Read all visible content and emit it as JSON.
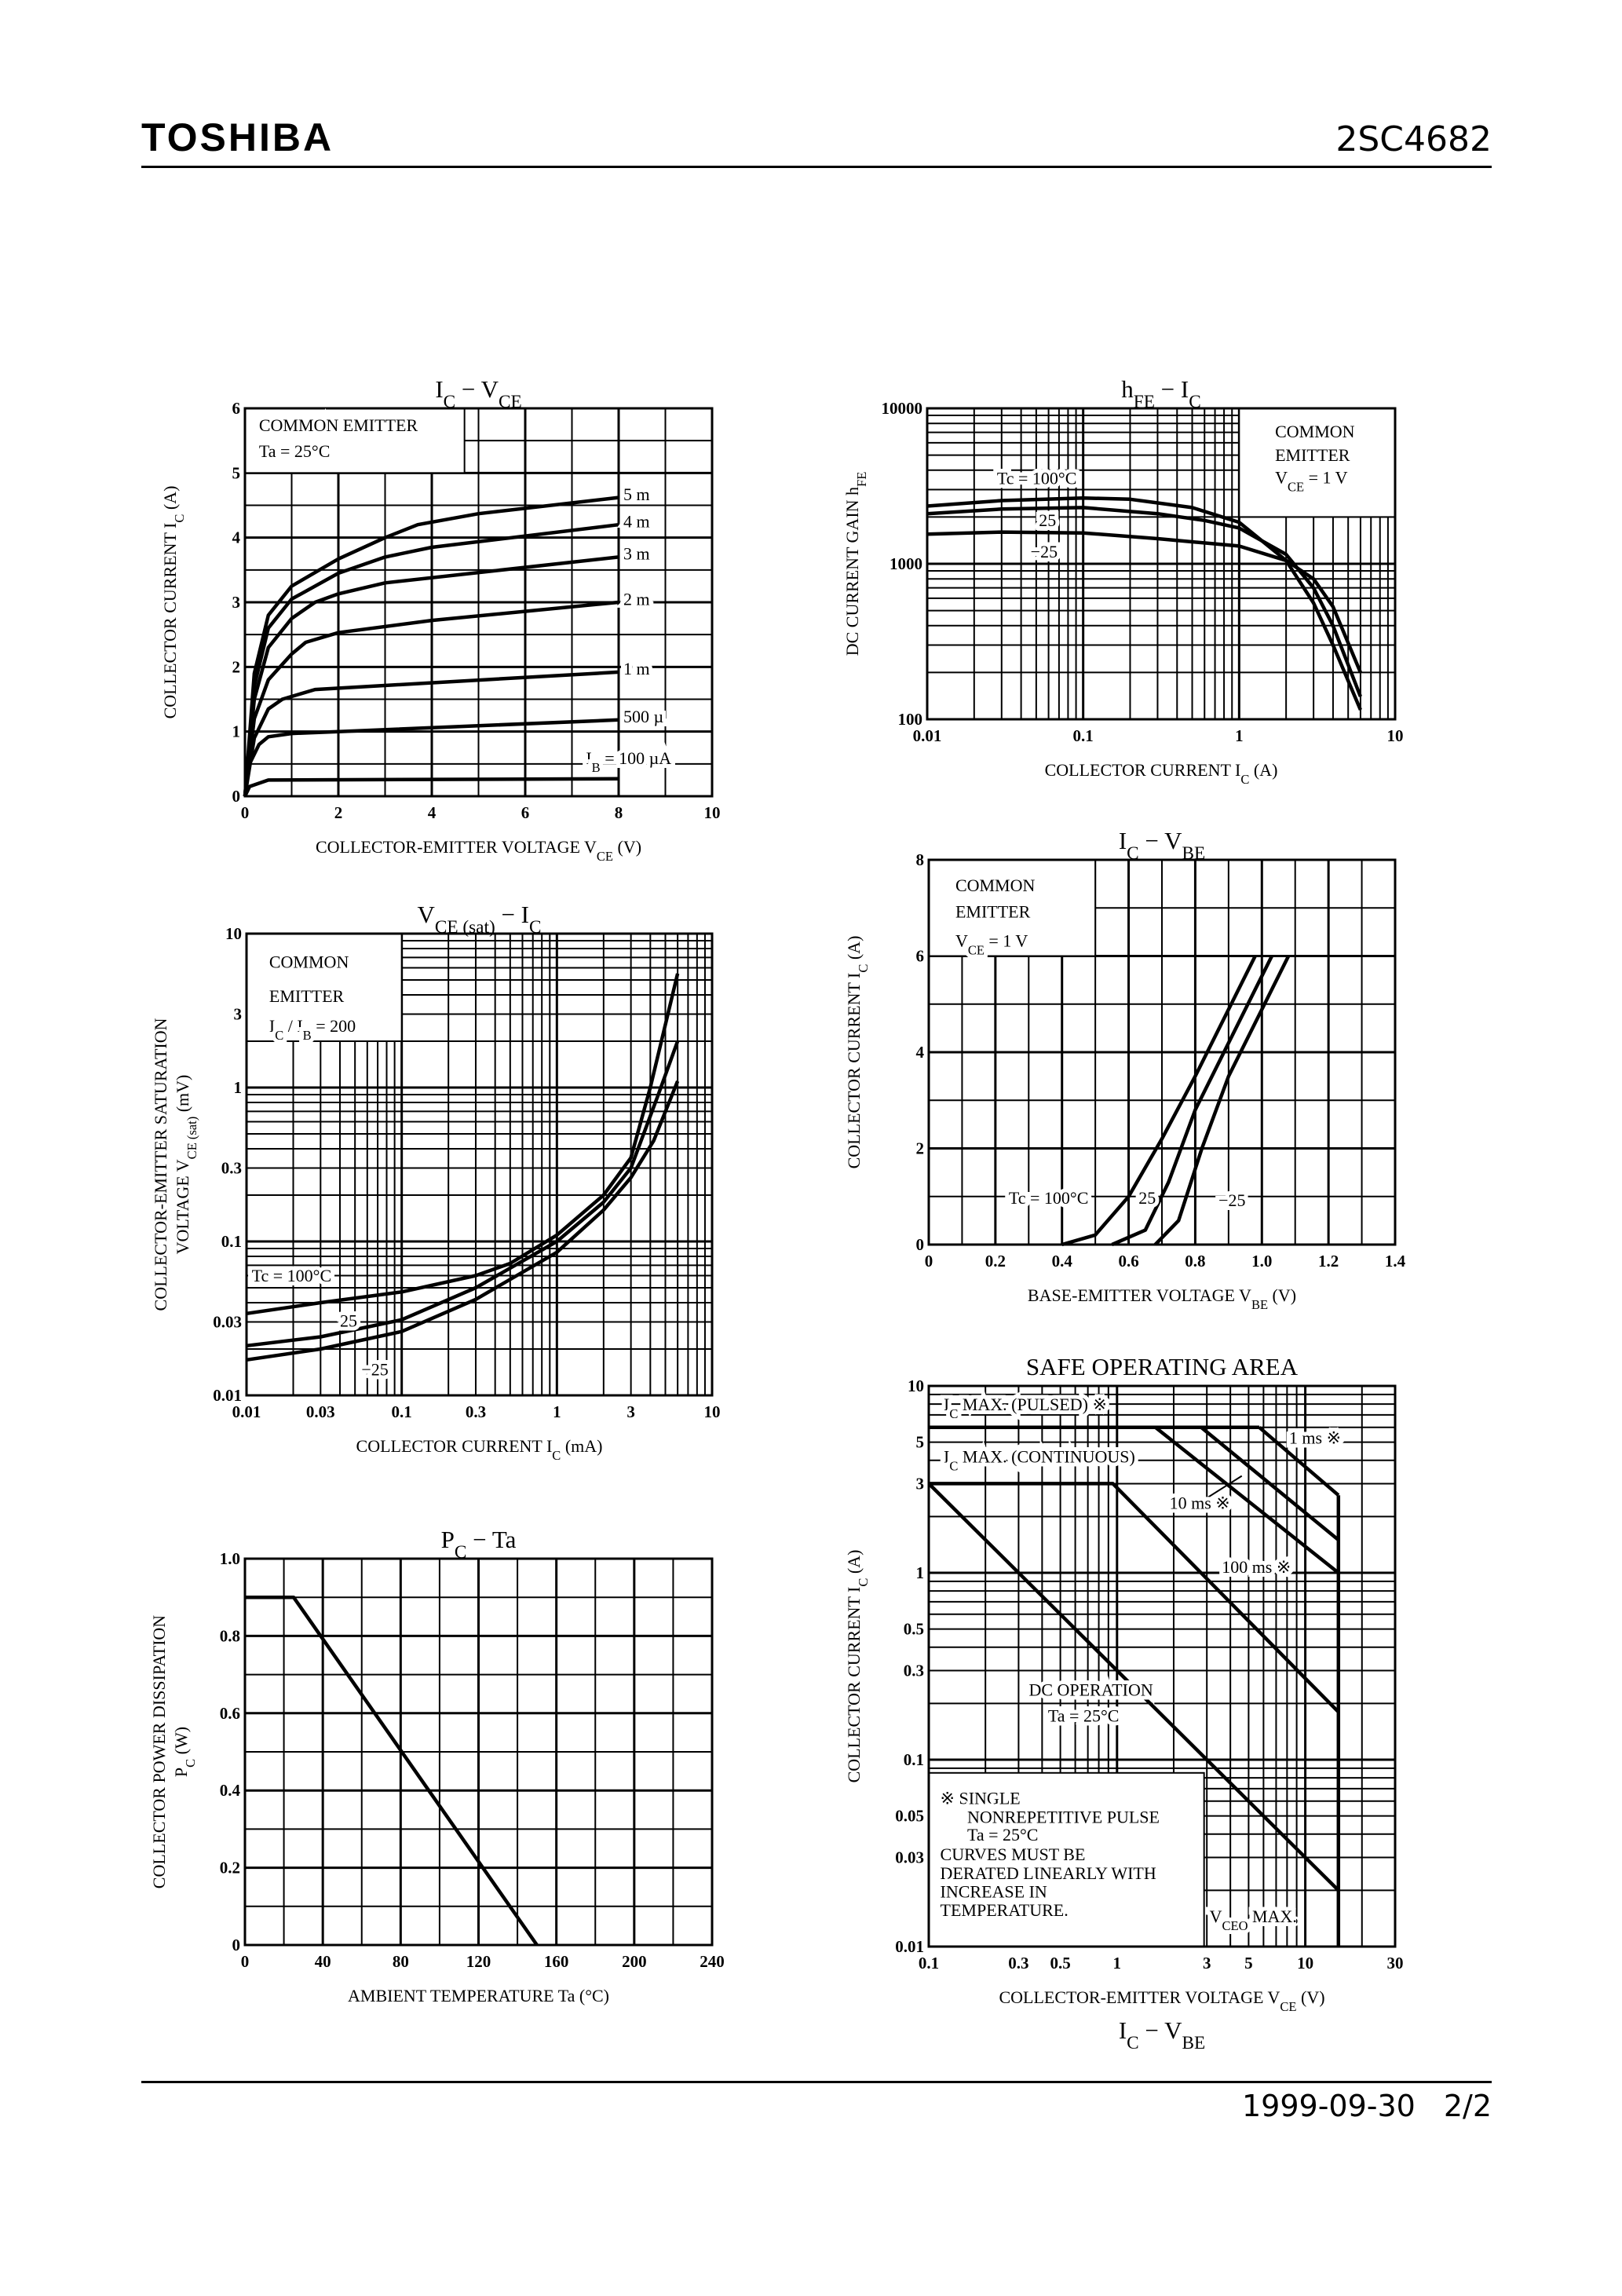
{
  "header": {
    "brand": "TOSHIBA",
    "part_number": "2SC4682"
  },
  "footer": {
    "date": "1999-09-30",
    "page": "2/2"
  },
  "extra_label": [
    "I",
    {
      "sub": "C"
    },
    " − V",
    {
      "sub": "BE"
    }
  ],
  "chart_data": [
    {
      "type": "line",
      "title": [
        "I",
        {
          "sub": "C"
        },
        " − V",
        {
          "sub": "CE"
        }
      ],
      "xlabel": [
        "COLLECTOR-EMITTER VOLTAGE   V",
        {
          "sub": "CE"
        },
        "   (V)"
      ],
      "ylabel": [
        [
          "COLLECTOR CURRENT   I",
          {
            "sub": "C"
          },
          "   (A)"
        ]
      ],
      "x": {
        "scale": "linear",
        "range": [
          0,
          10
        ],
        "ticks": [
          "0",
          "2",
          "4",
          "6",
          "8",
          "10"
        ]
      },
      "y": {
        "scale": "linear",
        "range": [
          0,
          6
        ],
        "ticks": [
          "0",
          "1",
          "2",
          "3",
          "4",
          "5",
          "6"
        ]
      },
      "grid": true,
      "series": [
        {
          "name": "IB = 100 µA",
          "points": [
            [
              0,
              0
            ],
            [
              0.1,
              0.15
            ],
            [
              0.5,
              0.25
            ],
            [
              8,
              0.27
            ]
          ]
        },
        {
          "name": "500 µ",
          "points": [
            [
              0,
              0
            ],
            [
              0.1,
              0.5
            ],
            [
              0.3,
              0.8
            ],
            [
              0.5,
              0.92
            ],
            [
              1,
              0.97
            ],
            [
              2,
              1.0
            ],
            [
              8,
              1.18
            ]
          ]
        },
        {
          "name": "1 m",
          "points": [
            [
              0,
              0
            ],
            [
              0.2,
              0.9
            ],
            [
              0.5,
              1.35
            ],
            [
              0.8,
              1.5
            ],
            [
              1.5,
              1.65
            ],
            [
              8,
              1.92
            ]
          ]
        },
        {
          "name": "2 m",
          "points": [
            [
              0,
              0
            ],
            [
              0.2,
              1.2
            ],
            [
              0.5,
              1.8
            ],
            [
              1,
              2.2
            ],
            [
              1.3,
              2.38
            ],
            [
              2,
              2.53
            ],
            [
              4,
              2.72
            ],
            [
              8,
              3.0
            ]
          ]
        },
        {
          "name": "3 m",
          "points": [
            [
              0,
              0
            ],
            [
              0.2,
              1.5
            ],
            [
              0.5,
              2.3
            ],
            [
              1,
              2.75
            ],
            [
              1.5,
              3.0
            ],
            [
              2,
              3.13
            ],
            [
              3,
              3.3
            ],
            [
              8,
              3.7
            ]
          ]
        },
        {
          "name": "4 m",
          "points": [
            [
              0,
              0
            ],
            [
              0.2,
              1.7
            ],
            [
              0.5,
              2.6
            ],
            [
              1,
              3.05
            ],
            [
              2,
              3.45
            ],
            [
              3,
              3.7
            ],
            [
              4,
              3.85
            ],
            [
              8,
              4.2
            ]
          ]
        },
        {
          "name": "5 m",
          "points": [
            [
              0,
              0
            ],
            [
              0.2,
              1.9
            ],
            [
              0.5,
              2.8
            ],
            [
              1,
              3.25
            ],
            [
              2,
              3.67
            ],
            [
              3,
              4.0
            ],
            [
              3.7,
              4.2
            ],
            [
              5,
              4.37
            ],
            [
              8,
              4.62
            ]
          ]
        }
      ],
      "annotations": [
        [
          "COMMON EMITTER"
        ],
        [
          "Ta = 25°C"
        ],
        [
          "5 m"
        ],
        [
          "4 m"
        ],
        [
          "3 m"
        ],
        [
          "2 m"
        ],
        [
          "1 m"
        ],
        [
          "500 µ"
        ],
        [
          "I",
          {
            "sub": "B"
          },
          " = 100 µA"
        ]
      ]
    },
    {
      "type": "line",
      "title": [
        "h",
        {
          "sub": "FE"
        },
        " − I",
        {
          "sub": "C"
        }
      ],
      "xlabel": [
        "COLLECTOR CURRENT   I",
        {
          "sub": "C"
        },
        "   (A)"
      ],
      "ylabel": [
        [
          "DC CURRENT GAIN   h",
          {
            "sub": "FE"
          }
        ]
      ],
      "x": {
        "scale": "log",
        "range": [
          0.01,
          10
        ],
        "ticks": [
          "0.01",
          "0.1",
          "1",
          "10"
        ]
      },
      "y": {
        "scale": "log",
        "range": [
          100,
          10000
        ],
        "ticks": [
          "100",
          "1000",
          "10000"
        ]
      },
      "grid": true,
      "series": [
        {
          "name": "Tc = 100°C",
          "points": [
            [
              0.01,
              2350
            ],
            [
              0.03,
              2550
            ],
            [
              0.1,
              2650
            ],
            [
              0.2,
              2600
            ],
            [
              0.5,
              2300
            ],
            [
              1,
              1850
            ],
            [
              2,
              1050
            ],
            [
              3,
              560
            ],
            [
              4,
              300
            ],
            [
              6,
              115
            ]
          ]
        },
        {
          "name": "25",
          "points": [
            [
              0.01,
              2100
            ],
            [
              0.03,
              2250
            ],
            [
              0.1,
              2300
            ],
            [
              0.3,
              2100
            ],
            [
              0.6,
              1900
            ],
            [
              1,
              1700
            ],
            [
              2,
              1150
            ],
            [
              3,
              700
            ],
            [
              4,
              400
            ],
            [
              6,
              140
            ]
          ]
        },
        {
          "name": "−25",
          "points": [
            [
              0.01,
              1550
            ],
            [
              0.03,
              1600
            ],
            [
              0.1,
              1580
            ],
            [
              0.3,
              1450
            ],
            [
              1,
              1300
            ],
            [
              2,
              1050
            ],
            [
              3,
              800
            ],
            [
              4,
              530
            ],
            [
              6,
              200
            ]
          ]
        }
      ],
      "annotations": [
        [
          "COMMON"
        ],
        [
          "EMITTER"
        ],
        [
          "V",
          {
            "sub": "CE"
          },
          " = 1 V"
        ],
        [
          "Tc = 100°C"
        ],
        [
          "25"
        ],
        [
          "−25"
        ]
      ]
    },
    {
      "type": "line",
      "title": [
        "V",
        {
          "sub": "CE (sat)"
        },
        " − I",
        {
          "sub": "C"
        }
      ],
      "xlabel": [
        "COLLECTOR CURRENT   I",
        {
          "sub": "C"
        },
        "   (mA)"
      ],
      "ylabel": [
        [
          "COLLECTOR-EMITTER SATURATION"
        ],
        [
          "VOLTAGE   V",
          {
            "sub": "CE (sat)"
          },
          "   (mV)"
        ]
      ],
      "x": {
        "scale": "log",
        "range": [
          0.01,
          10
        ],
        "ticks": [
          "0.01",
          "0.03",
          "0.1",
          "0.3",
          "1",
          "3",
          "10"
        ]
      },
      "y": {
        "scale": "log",
        "range": [
          0.01,
          10
        ],
        "ticks": [
          "0.01",
          "0.03",
          "0.1",
          "0.3",
          "1",
          "3",
          "10"
        ]
      },
      "grid": true,
      "series": [
        {
          "name": "Tc = 100°C",
          "points": [
            [
              0.01,
              0.034
            ],
            [
              0.03,
              0.04
            ],
            [
              0.1,
              0.047
            ],
            [
              0.3,
              0.06
            ],
            [
              0.5,
              0.072
            ],
            [
              1,
              0.11
            ],
            [
              2,
              0.2
            ],
            [
              3,
              0.35
            ],
            [
              4,
              1.0
            ],
            [
              6,
              5.5
            ]
          ]
        },
        {
          "name": "25",
          "points": [
            [
              0.01,
              0.021
            ],
            [
              0.03,
              0.024
            ],
            [
              0.1,
              0.031
            ],
            [
              0.3,
              0.05
            ],
            [
              1,
              0.1
            ],
            [
              2,
              0.18
            ],
            [
              3,
              0.3
            ],
            [
              4.5,
              0.9
            ],
            [
              6,
              2.0
            ]
          ]
        },
        {
          "name": "−25",
          "points": [
            [
              0.01,
              0.017
            ],
            [
              0.03,
              0.02
            ],
            [
              0.1,
              0.026
            ],
            [
              0.3,
              0.042
            ],
            [
              1,
              0.085
            ],
            [
              2,
              0.16
            ],
            [
              3,
              0.26
            ],
            [
              4.2,
              0.45
            ],
            [
              6,
              1.1
            ]
          ]
        }
      ],
      "annotations": [
        [
          "COMMON"
        ],
        [
          "EMITTER"
        ],
        [
          "I",
          {
            "sub": "C"
          },
          " / I",
          {
            "sub": "B"
          },
          " = 200"
        ],
        [
          "Tc = 100°C"
        ],
        [
          "25"
        ],
        [
          "−25"
        ]
      ]
    },
    {
      "type": "line",
      "title": [
        "I",
        {
          "sub": "C"
        },
        " − V",
        {
          "sub": "BE"
        }
      ],
      "xlabel": [
        "BASE-EMITTER VOLTAGE   V",
        {
          "sub": "BE"
        },
        "   (V)"
      ],
      "ylabel": [
        [
          "COLLECTOR CURRENT   I",
          {
            "sub": "C"
          },
          "   (A)"
        ]
      ],
      "x": {
        "scale": "linear",
        "range": [
          0,
          1.4
        ],
        "ticks": [
          "0",
          "0.2",
          "0.4",
          "0.6",
          "0.8",
          "1.0",
          "1.2",
          "1.4"
        ]
      },
      "y": {
        "scale": "linear",
        "range": [
          0,
          8
        ],
        "ticks": [
          "0",
          "2",
          "4",
          "6",
          "8"
        ]
      },
      "grid": true,
      "series": [
        {
          "name": "Tc = 100°C",
          "points": [
            [
              0.4,
              0
            ],
            [
              0.5,
              0.2
            ],
            [
              0.6,
              1
            ],
            [
              0.7,
              2.2
            ],
            [
              0.8,
              3.5
            ],
            [
              0.98,
              6
            ]
          ]
        },
        {
          "name": "25",
          "points": [
            [
              0.55,
              0
            ],
            [
              0.65,
              0.3
            ],
            [
              0.72,
              1.3
            ],
            [
              0.8,
              2.8
            ],
            [
              1.03,
              6
            ]
          ]
        },
        {
          "name": "−25",
          "points": [
            [
              0.68,
              0
            ],
            [
              0.75,
              0.5
            ],
            [
              0.82,
              2
            ],
            [
              0.9,
              3.5
            ],
            [
              1.08,
              6
            ]
          ]
        }
      ],
      "annotations": [
        [
          "COMMON"
        ],
        [
          "EMITTER"
        ],
        [
          "V",
          {
            "sub": "CE"
          },
          " = 1 V"
        ],
        [
          "Tc = 100°C"
        ],
        [
          "25"
        ],
        [
          "−25"
        ]
      ]
    },
    {
      "type": "line",
      "title": [
        "SAFE OPERATING AREA"
      ],
      "xlabel": [
        "COLLECTOR-EMITTER VOLTAGE   V",
        {
          "sub": "CE"
        },
        "   (V)"
      ],
      "ylabel": [
        [
          "COLLECTOR CURRENT   I",
          {
            "sub": "C"
          },
          "   (A)"
        ]
      ],
      "x": {
        "scale": "log",
        "range": [
          0.1,
          30
        ],
        "ticks": [
          "0.1",
          "0.3",
          "0.5",
          "1",
          "3",
          "5",
          "10",
          "30"
        ]
      },
      "y": {
        "scale": "log",
        "range": [
          0.01,
          10
        ],
        "ticks": [
          "0.01",
          "0.03",
          "0.05",
          "0.1",
          "0.3",
          "0.5",
          "1",
          "3",
          "5",
          "10"
        ]
      },
      "grid": true,
      "series": [
        {
          "points": [
            [
              0.1,
              6
            ],
            [
              5.7,
              6
            ]
          ]
        },
        {
          "points": [
            [
              5.7,
              6
            ],
            [
              15,
              2.6
            ]
          ]
        },
        {
          "points": [
            [
              2.8,
              6
            ],
            [
              15,
              1.5
            ]
          ]
        },
        {
          "points": [
            [
              1.6,
              6
            ],
            [
              15,
              1.0
            ]
          ]
        },
        {
          "points": [
            [
              0.1,
              3
            ],
            [
              0.95,
              3
            ],
            [
              15,
              0.18
            ]
          ]
        },
        {
          "points": [
            [
              0.1,
              3
            ],
            [
              15,
              0.02
            ]
          ]
        },
        {
          "points": [
            [
              15,
              0.01
            ],
            [
              15,
              2.6
            ]
          ]
        }
      ],
      "annotations": [
        [
          "I",
          {
            "sub": "C"
          },
          " MAX. (PULSED) ※"
        ],
        [
          "I",
          {
            "sub": "C"
          },
          " MAX. (CONTINUOUS)"
        ],
        [
          "1 ms ※"
        ],
        [
          "10 ms ※"
        ],
        [
          "100 ms ※"
        ],
        [
          "DC OPERATION"
        ],
        [
          "Ta = 25°C"
        ],
        [
          "※  SINGLE"
        ],
        [
          "NONREPETITIVE PULSE"
        ],
        [
          "Ta = 25°C"
        ],
        [
          "CURVES MUST BE"
        ],
        [
          "DERATED LINEARLY WITH"
        ],
        [
          "INCREASE IN"
        ],
        [
          "TEMPERATURE."
        ],
        [
          "V",
          {
            "sub": "CEO"
          },
          " MAX."
        ]
      ]
    },
    {
      "type": "line",
      "title": [
        "P",
        {
          "sub": "C"
        },
        " − Ta"
      ],
      "xlabel": [
        "AMBIENT TEMPERATURE   Ta   (°C)"
      ],
      "ylabel": [
        [
          "COLLECTOR POWER DISSIPATION"
        ],
        [
          "P",
          {
            "sub": "C"
          },
          "   (W)"
        ]
      ],
      "x": {
        "scale": "linear",
        "range": [
          0,
          240
        ],
        "ticks": [
          "0",
          "40",
          "80",
          "120",
          "160",
          "200",
          "240"
        ]
      },
      "y": {
        "scale": "linear",
        "range": [
          0,
          1.0
        ],
        "ticks": [
          "0",
          "0.2",
          "0.4",
          "0.6",
          "0.8",
          "1.0"
        ]
      },
      "grid": true,
      "series": [
        {
          "points": [
            [
              0,
              0.9
            ],
            [
              25,
              0.9
            ],
            [
              150,
              0
            ]
          ]
        }
      ],
      "annotations": []
    }
  ]
}
